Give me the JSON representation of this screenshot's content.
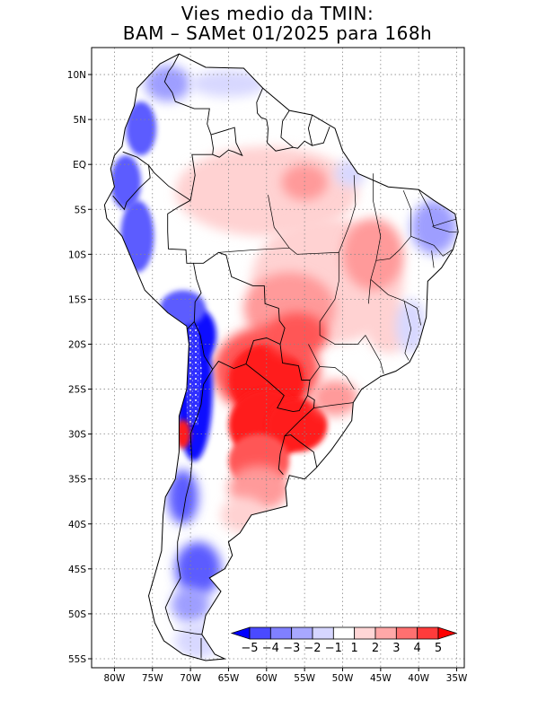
{
  "title": {
    "line1": "Vies medio da TMIN:",
    "line2": "BAM – SAMet 01/2025  para 168h"
  },
  "map": {
    "lon_range": [
      -83,
      -34
    ],
    "lat_range": [
      -56,
      13
    ],
    "grid": "dotted",
    "lat_ticks": [
      {
        "value": 10,
        "label": "10N"
      },
      {
        "value": 5,
        "label": "5N"
      },
      {
        "value": 0,
        "label": "EQ"
      },
      {
        "value": -5,
        "label": "5S"
      },
      {
        "value": -10,
        "label": "10S"
      },
      {
        "value": -15,
        "label": "15S"
      },
      {
        "value": -20,
        "label": "20S"
      },
      {
        "value": -25,
        "label": "25S"
      },
      {
        "value": -30,
        "label": "30S"
      },
      {
        "value": -35,
        "label": "35S"
      },
      {
        "value": -40,
        "label": "40S"
      },
      {
        "value": -45,
        "label": "45S"
      },
      {
        "value": -50,
        "label": "50S"
      },
      {
        "value": -55,
        "label": "55S"
      }
    ],
    "lon_ticks": [
      {
        "value": -80,
        "label": "80W"
      },
      {
        "value": -75,
        "label": "75W"
      },
      {
        "value": -70,
        "label": "70W"
      },
      {
        "value": -65,
        "label": "65W"
      },
      {
        "value": -60,
        "label": "60W"
      },
      {
        "value": -55,
        "label": "55W"
      },
      {
        "value": -50,
        "label": "50W"
      },
      {
        "value": -45,
        "label": "45W"
      },
      {
        "value": -40,
        "label": "40W"
      },
      {
        "value": -35,
        "label": "35W"
      }
    ],
    "continent": [
      [
        -77,
        8.5
      ],
      [
        -74,
        11.2
      ],
      [
        -71.5,
        12.3
      ],
      [
        -68,
        10.8
      ],
      [
        -63,
        10.7
      ],
      [
        -60.5,
        8.5
      ],
      [
        -57,
        6
      ],
      [
        -54,
        5.5
      ],
      [
        -51,
        4
      ],
      [
        -50,
        1.5
      ],
      [
        -48,
        -1
      ],
      [
        -44,
        -2.5
      ],
      [
        -40,
        -2.8
      ],
      [
        -38,
        -4
      ],
      [
        -35.2,
        -5.5
      ],
      [
        -34.8,
        -7.5
      ],
      [
        -35.5,
        -9.5
      ],
      [
        -37,
        -11.5
      ],
      [
        -38.8,
        -13
      ],
      [
        -39,
        -17
      ],
      [
        -40,
        -20
      ],
      [
        -41.2,
        -22
      ],
      [
        -43,
        -23
      ],
      [
        -45,
        -23.6
      ],
      [
        -47.5,
        -25
      ],
      [
        -48.6,
        -26.5
      ],
      [
        -48.8,
        -28.5
      ],
      [
        -50,
        -30
      ],
      [
        -51.5,
        -31.8
      ],
      [
        -53.5,
        -33.8
      ],
      [
        -55,
        -35
      ],
      [
        -57,
        -34.6
      ],
      [
        -57.5,
        -36
      ],
      [
        -57.3,
        -38
      ],
      [
        -62,
        -39
      ],
      [
        -63.5,
        -41
      ],
      [
        -65,
        -42
      ],
      [
        -64.5,
        -43.5
      ],
      [
        -65.5,
        -45
      ],
      [
        -67.5,
        -46
      ],
      [
        -66,
        -47.5
      ],
      [
        -68,
        -50.2
      ],
      [
        -68.5,
        -52.3
      ],
      [
        -66.8,
        -54.5
      ],
      [
        -65.5,
        -55
      ],
      [
        -68,
        -55.2
      ],
      [
        -71,
        -54.5
      ],
      [
        -73.5,
        -53
      ],
      [
        -74.7,
        -51
      ],
      [
        -75.5,
        -48
      ],
      [
        -74.8,
        -46
      ],
      [
        -73.8,
        -43
      ],
      [
        -73.6,
        -39
      ],
      [
        -73.3,
        -37
      ],
      [
        -72,
        -35
      ],
      [
        -71.5,
        -32
      ],
      [
        -71.5,
        -28
      ],
      [
        -70.5,
        -25
      ],
      [
        -70.2,
        -20
      ],
      [
        -70.5,
        -18
      ],
      [
        -73,
        -16.5
      ],
      [
        -76,
        -14
      ],
      [
        -77,
        -12
      ],
      [
        -79,
        -8
      ],
      [
        -81,
        -6
      ],
      [
        -81.3,
        -4.5
      ],
      [
        -80,
        -2.5
      ],
      [
        -80.5,
        -0.5
      ],
      [
        -80,
        1
      ],
      [
        -79,
        2
      ],
      [
        -78.6,
        4
      ],
      [
        -77.4,
        6.5
      ]
    ],
    "borders": [
      [
        [
          -71.5,
          12.3
        ],
        [
          -72.3,
          11
        ],
        [
          -72.9,
          10.3
        ],
        [
          -73.4,
          9.2
        ],
        [
          -72.4,
          8
        ],
        [
          -72,
          7
        ],
        [
          -69.5,
          6.2
        ],
        [
          -67.5,
          6.2
        ],
        [
          -67.8,
          4.5
        ],
        [
          -67.3,
          3.3
        ],
        [
          -67,
          1.8
        ],
        [
          -67.1,
          1.1
        ]
      ],
      [
        [
          -67.1,
          1.1
        ],
        [
          -69.8,
          1.1
        ],
        [
          -69.4,
          -1.2
        ],
        [
          -70,
          -4
        ]
      ],
      [
        [
          -60.5,
          8.5
        ],
        [
          -61.3,
          6.9
        ],
        [
          -61.2,
          5.7
        ],
        [
          -60.7,
          5.2
        ],
        [
          -60,
          5
        ],
        [
          -59.8,
          4
        ],
        [
          -59.9,
          2.4
        ],
        [
          -58.8,
          1.5
        ],
        [
          -56.5,
          1.9
        ],
        [
          -55.9,
          1.8
        ],
        [
          -55,
          2.6
        ],
        [
          -54,
          2.1
        ]
      ],
      [
        [
          -57,
          6
        ],
        [
          -57.9,
          4.8
        ],
        [
          -58.1,
          3
        ],
        [
          -56.5,
          1.9
        ]
      ],
      [
        [
          -54,
          5.5
        ],
        [
          -54.5,
          4
        ],
        [
          -54,
          2.1
        ],
        [
          -52.5,
          2.4
        ],
        [
          -51.7,
          4.2
        ]
      ],
      [
        [
          -67.3,
          3.3
        ],
        [
          -64.2,
          4.1
        ],
        [
          -64,
          2.4
        ],
        [
          -63.2,
          1
        ],
        [
          -64.3,
          1.4
        ],
        [
          -65,
          1.6
        ],
        [
          -66.2,
          0.8
        ],
        [
          -67.1,
          1.1
        ]
      ],
      [
        [
          -78.9,
          1.4
        ],
        [
          -77,
          0.8
        ],
        [
          -75.5,
          -0.1
        ],
        [
          -75.3,
          -1.5
        ],
        [
          -76.7,
          -2.6
        ],
        [
          -78.4,
          -4.2
        ],
        [
          -78.7,
          -5
        ],
        [
          -80.2,
          -3.5
        ]
      ],
      [
        [
          -70,
          -4
        ],
        [
          -72.9,
          -2.4
        ],
        [
          -74.8,
          -0.9
        ],
        [
          -75.5,
          -0.1
        ]
      ],
      [
        [
          -70,
          -4
        ],
        [
          -71.5,
          -4.7
        ],
        [
          -73,
          -5.5
        ],
        [
          -73,
          -7.5
        ],
        [
          -72.9,
          -9.4
        ],
        [
          -70.6,
          -9.5
        ],
        [
          -70.5,
          -11
        ],
        [
          -69.6,
          -11
        ],
        [
          -69.2,
          -12.8
        ],
        [
          -68.6,
          -14.3
        ],
        [
          -69.4,
          -15.3
        ],
        [
          -69.5,
          -17.5
        ],
        [
          -70.4,
          -18.3
        ]
      ],
      [
        [
          -69.6,
          -11
        ],
        [
          -68.3,
          -11
        ],
        [
          -66.3,
          -9.8
        ],
        [
          -65.3,
          -10.1
        ],
        [
          -64.6,
          -12.5
        ],
        [
          -61.8,
          -13.5
        ],
        [
          -60.3,
          -13.5
        ],
        [
          -60.2,
          -15.5
        ],
        [
          -58.4,
          -16
        ],
        [
          -58.3,
          -17.4
        ],
        [
          -57.6,
          -18.2
        ],
        [
          -58.2,
          -20
        ],
        [
          -60,
          -19.3
        ],
        [
          -61.7,
          -19.6
        ],
        [
          -62.7,
          -22.2
        ],
        [
          -64.3,
          -22.7
        ],
        [
          -66.3,
          -21.9
        ],
        [
          -67.1,
          -22.8
        ],
        [
          -68.2,
          -21.3
        ],
        [
          -68.7,
          -19
        ],
        [
          -69.5,
          -17.5
        ]
      ],
      [
        [
          -58.2,
          -20
        ],
        [
          -57.9,
          -22.1
        ],
        [
          -55.8,
          -22.4
        ],
        [
          -55.4,
          -24
        ],
        [
          -54.3,
          -24
        ],
        [
          -54.6,
          -25.7
        ],
        [
          -55.7,
          -27.4
        ],
        [
          -56.5,
          -27.5
        ],
        [
          -58.6,
          -27.1
        ],
        [
          -57.7,
          -25.7
        ],
        [
          -60,
          -24
        ],
        [
          -62.7,
          -22.2
        ]
      ],
      [
        [
          -54.6,
          -25.7
        ],
        [
          -53.7,
          -26.2
        ],
        [
          -53.8,
          -27.1
        ],
        [
          -55.6,
          -28.5
        ],
        [
          -57.6,
          -30.2
        ],
        [
          -56.8,
          -30.1
        ],
        [
          -55.6,
          -30.9
        ],
        [
          -53.8,
          -32
        ],
        [
          -53.4,
          -33.7
        ]
      ],
      [
        [
          -57.6,
          -30.2
        ],
        [
          -58.2,
          -32.2
        ],
        [
          -58.4,
          -33.9
        ],
        [
          -57.8,
          -34.5
        ]
      ],
      [
        [
          -67.1,
          -22.8
        ],
        [
          -68.3,
          -24.5
        ],
        [
          -68.6,
          -26.7
        ],
        [
          -69.1,
          -28
        ],
        [
          -70,
          -30
        ],
        [
          -69.8,
          -33
        ],
        [
          -70,
          -35
        ],
        [
          -70.6,
          -37
        ],
        [
          -71.1,
          -39.5
        ],
        [
          -71.7,
          -42
        ],
        [
          -71.7,
          -44
        ],
        [
          -71.3,
          -46
        ],
        [
          -72.3,
          -47.5
        ],
        [
          -73.3,
          -49.3
        ],
        [
          -72.8,
          -50.7
        ],
        [
          -72.2,
          -51.8
        ],
        [
          -69.5,
          -52.2
        ],
        [
          -68.5,
          -52.3
        ]
      ],
      [
        [
          -68.6,
          -54.9
        ],
        [
          -68.6,
          -52.7
        ]
      ]
    ],
    "brazil_states": [
      [
        [
          -48.5,
          -1.2
        ],
        [
          -48.3,
          -4.5
        ],
        [
          -49,
          -6.5
        ],
        [
          -50.5,
          -9.8
        ]
      ],
      [
        [
          -57,
          -9.3
        ],
        [
          -61.5,
          -9.5
        ],
        [
          -66.3,
          -9.8
        ]
      ],
      [
        [
          -59.8,
          -3.4
        ],
        [
          -59,
          -7
        ],
        [
          -57,
          -9.3
        ],
        [
          -56,
          -10
        ],
        [
          -50.5,
          -9.8
        ],
        [
          -50.5,
          -13
        ],
        [
          -51,
          -15
        ],
        [
          -53,
          -17.5
        ],
        [
          -53,
          -19
        ],
        [
          -51,
          -20
        ],
        [
          -48,
          -20
        ],
        [
          -47,
          -19
        ]
      ],
      [
        [
          -46,
          -1
        ],
        [
          -46,
          -4
        ],
        [
          -45,
          -8
        ],
        [
          -45.6,
          -10.7
        ],
        [
          -46.3,
          -12.8
        ],
        [
          -46.6,
          -15.5
        ]
      ],
      [
        [
          -42,
          -2.9
        ],
        [
          -41,
          -5
        ],
        [
          -41,
          -8
        ],
        [
          -42.5,
          -9.5
        ],
        [
          -43.8,
          -10.5
        ],
        [
          -45.6,
          -10.7
        ]
      ],
      [
        [
          -40,
          -2.8
        ],
        [
          -38.6,
          -5
        ],
        [
          -38,
          -7
        ],
        [
          -36,
          -7.5
        ],
        [
          -34.9,
          -7.5
        ]
      ],
      [
        [
          -38.2,
          -6.9
        ],
        [
          -36,
          -6.3
        ],
        [
          -35.1,
          -6.1
        ]
      ],
      [
        [
          -41,
          -8
        ],
        [
          -38,
          -9
        ],
        [
          -36.8,
          -10.2
        ],
        [
          -35.6,
          -9.5
        ]
      ],
      [
        [
          -38.3,
          -9.6
        ],
        [
          -38,
          -11.5
        ]
      ],
      [
        [
          -46.3,
          -12.8
        ],
        [
          -44,
          -14.5
        ],
        [
          -41.9,
          -15.2
        ],
        [
          -40.2,
          -16
        ],
        [
          -39.7,
          -17.9
        ]
      ],
      [
        [
          -47,
          -19
        ],
        [
          -45,
          -22
        ],
        [
          -44.8,
          -22.7
        ],
        [
          -44.6,
          -23.3
        ]
      ],
      [
        [
          -41.9,
          -15.2
        ],
        [
          -41,
          -18.3
        ],
        [
          -41.8,
          -21
        ],
        [
          -41.3,
          -21.8
        ]
      ],
      [
        [
          -53,
          -22.5
        ],
        [
          -51,
          -22.6
        ],
        [
          -49.5,
          -23.6
        ],
        [
          -48.5,
          -25
        ]
      ],
      [
        [
          -53.8,
          -27.1
        ],
        [
          -51.5,
          -26.8
        ],
        [
          -48.6,
          -26.5
        ]
      ],
      [
        [
          -54.5,
          -20
        ],
        [
          -53,
          -22.5
        ],
        [
          -54.3,
          -24
        ]
      ]
    ],
    "colorbar": {
      "labels": [
        "−5",
        "−4",
        "−3",
        "−2",
        "−1",
        "1",
        "2",
        "3",
        "4",
        "5"
      ],
      "colors": [
        "#0000ff",
        "#4a4aff",
        "#8080ff",
        "#a8a8ff",
        "#d6d6ff",
        "#ffffff",
        "#ffd6d6",
        "#ffa8a8",
        "#ff7070",
        "#ff3b3b",
        "#ff0000"
      ]
    },
    "colors": {
      "strong_red": "#ff1a1a",
      "mid_red": "#ff5757",
      "light_red": "#ff9a9a",
      "pale_red": "#ffd2d2",
      "strong_blue": "#1010ff",
      "mid_blue": "#5c5cff",
      "light_blue": "#9e9eff",
      "pale_blue": "#d8d8ff"
    }
  }
}
